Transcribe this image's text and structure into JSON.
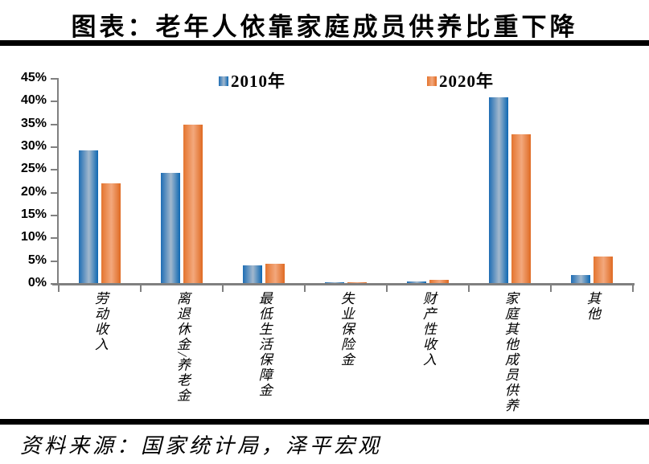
{
  "title": "图表：老年人依靠家庭成员供养比重下降",
  "source": "资料来源：国家统计局，泽平宏观",
  "legend": [
    {
      "label": "2010年",
      "series": "2010"
    },
    {
      "label": "2020年",
      "series": "2020"
    }
  ],
  "colors": {
    "blue_edge": "#1e6db4",
    "blue_mid": "#a2b8cd",
    "blue_edge2": "#0d67b2",
    "orange_edge": "#e4752f",
    "orange_mid": "#f3a87d",
    "orange_edge2": "#df6a22",
    "axis": "#808080",
    "rule": "#000000",
    "text": "#000000"
  },
  "chart_data": {
    "type": "bar",
    "title": "图表：老年人依靠家庭成员供养比重下降",
    "categories": [
      "劳动收入",
      "离退休金/养老金",
      "最低生活保障金",
      "失业保险金",
      "财产性收入",
      "家庭其他成员供养",
      "其他"
    ],
    "series": [
      {
        "name": "2010年",
        "color": "#2e75b6",
        "values": [
          29.1,
          24.1,
          3.9,
          0.1,
          0.4,
          40.7,
          1.8
        ]
      },
      {
        "name": "2020年",
        "color": "#ed7d31",
        "values": [
          21.9,
          34.7,
          4.2,
          0.1,
          0.7,
          32.7,
          5.8
        ]
      }
    ],
    "xlabel": "",
    "ylabel": "",
    "ylim": [
      0,
      45
    ],
    "ytick_step": 5,
    "yticks": [
      "45%",
      "40%",
      "35%",
      "30%",
      "25%",
      "20%",
      "15%",
      "10%",
      "5%",
      "0%"
    ],
    "grid": false,
    "legend_position": "top",
    "bar_label_orientation": "vertical"
  }
}
